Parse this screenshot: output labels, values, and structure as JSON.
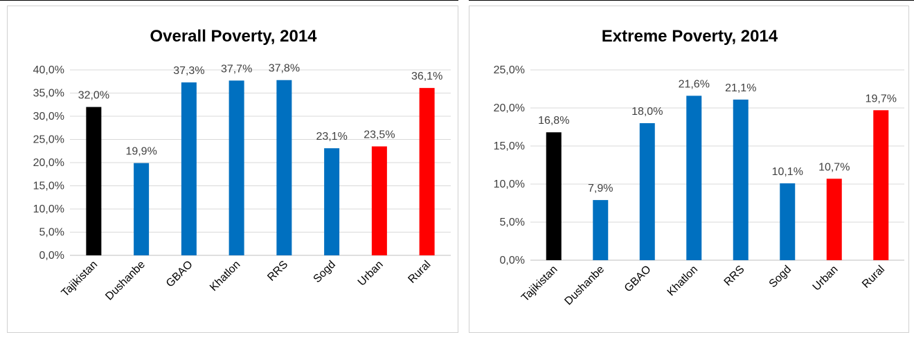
{
  "colors": {
    "national": "#000000",
    "region": "#0070c0",
    "urban_rural": "#ff0000",
    "grid": "#d9d9d9"
  },
  "chart_data": [
    {
      "type": "bar",
      "title": "Overall Poverty, 2014",
      "categories": [
        "Tajikistan",
        "Dushanbe",
        "GBAO",
        "Khatlon",
        "RRS",
        "Sogd",
        "Urban",
        "Rural"
      ],
      "values": [
        32.0,
        19.9,
        37.3,
        37.7,
        37.8,
        23.1,
        23.5,
        36.1
      ],
      "data_labels": [
        "32,0%",
        "19,9%",
        "37,3%",
        "37,7%",
        "37,8%",
        "23,1%",
        "23,5%",
        "36,1%"
      ],
      "bar_colors": [
        "#000000",
        "#0070c0",
        "#0070c0",
        "#0070c0",
        "#0070c0",
        "#0070c0",
        "#ff0000",
        "#ff0000"
      ],
      "ylim": [
        0,
        40
      ],
      "yticks": [
        0,
        5,
        10,
        15,
        20,
        25,
        30,
        35,
        40
      ],
      "ytick_labels": [
        "0,0%",
        "5,0%",
        "10,0%",
        "15,0%",
        "20,0%",
        "25,0%",
        "30,0%",
        "35,0%",
        "40,0%"
      ],
      "grid": true,
      "xlabel": "",
      "ylabel": ""
    },
    {
      "type": "bar",
      "title": "Extreme Poverty, 2014",
      "categories": [
        "Tajikistan",
        "Dushanbe",
        "GBAO",
        "Khatlon",
        "RRS",
        "Sogd",
        "Urban",
        "Rural"
      ],
      "values": [
        16.8,
        7.9,
        18.0,
        21.6,
        21.1,
        10.1,
        10.7,
        19.7
      ],
      "data_labels": [
        "16,8%",
        "7,9%",
        "18,0%",
        "21,6%",
        "21,1%",
        "10,1%",
        "10,7%",
        "19,7%"
      ],
      "bar_colors": [
        "#000000",
        "#0070c0",
        "#0070c0",
        "#0070c0",
        "#0070c0",
        "#0070c0",
        "#ff0000",
        "#ff0000"
      ],
      "ylim": [
        0,
        25
      ],
      "yticks": [
        0,
        5,
        10,
        15,
        20,
        25
      ],
      "ytick_labels": [
        "0,0%",
        "5,0%",
        "10,0%",
        "15,0%",
        "20,0%",
        "25,0%"
      ],
      "grid": true,
      "xlabel": "",
      "ylabel": ""
    }
  ]
}
